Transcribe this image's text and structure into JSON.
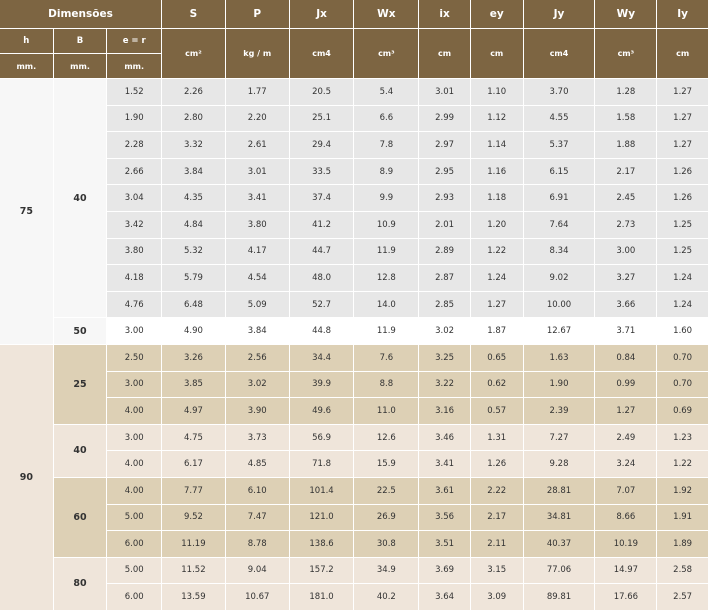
{
  "header": {
    "group_label": "Dimensões",
    "columns": [
      "S",
      "P",
      "Jx",
      "Wx",
      "ix",
      "ey",
      "Jy",
      "Wy",
      "Iy"
    ],
    "sub": {
      "h": "h",
      "b": "B",
      "er": "e = r"
    },
    "units_dims": {
      "h": "mm.",
      "b": "mm.",
      "er": "mm."
    },
    "units": [
      "cm²",
      "kg / m",
      "cm4",
      "cm³",
      "cm",
      "cm",
      "cm4",
      "cm³",
      "cm"
    ]
  },
  "h75": {
    "h": "75",
    "b40": {
      "b": "40",
      "rows": [
        [
          "1.52",
          "2.26",
          "1.77",
          "20.5",
          "5.4",
          "3.01",
          "1.10",
          "3.70",
          "1.28",
          "1.27"
        ],
        [
          "1.90",
          "2.80",
          "2.20",
          "25.1",
          "6.6",
          "2.99",
          "1.12",
          "4.55",
          "1.58",
          "1.27"
        ],
        [
          "2.28",
          "3.32",
          "2.61",
          "29.4",
          "7.8",
          "2.97",
          "1.14",
          "5.37",
          "1.88",
          "1.27"
        ],
        [
          "2.66",
          "3.84",
          "3.01",
          "33.5",
          "8.9",
          "2.95",
          "1.16",
          "6.15",
          "2.17",
          "1.26"
        ],
        [
          "3.04",
          "4.35",
          "3.41",
          "37.4",
          "9.9",
          "2.93",
          "1.18",
          "6.91",
          "2.45",
          "1.26"
        ],
        [
          "3.42",
          "4.84",
          "3.80",
          "41.2",
          "10.9",
          "2.01",
          "1.20",
          "7.64",
          "2.73",
          "1.25"
        ],
        [
          "3.80",
          "5.32",
          "4.17",
          "44.7",
          "11.9",
          "2.89",
          "1.22",
          "8.34",
          "3.00",
          "1.25"
        ],
        [
          "4.18",
          "5.79",
          "4.54",
          "48.0",
          "12.8",
          "2.87",
          "1.24",
          "9.02",
          "3.27",
          "1.24"
        ],
        [
          "4.76",
          "6.48",
          "5.09",
          "52.7",
          "14.0",
          "2.85",
          "1.27",
          "10.00",
          "3.66",
          "1.24"
        ]
      ]
    },
    "b50": {
      "b": "50",
      "rows": [
        [
          "3.00",
          "4.90",
          "3.84",
          "44.8",
          "11.9",
          "3.02",
          "1.87",
          "12.67",
          "3.71",
          "1.60"
        ]
      ]
    }
  },
  "h90": {
    "h": "90",
    "b25": {
      "b": "25",
      "rows": [
        [
          "2.50",
          "3.26",
          "2.56",
          "34.4",
          "7.6",
          "3.25",
          "0.65",
          "1.63",
          "0.84",
          "0.70"
        ],
        [
          "3.00",
          "3.85",
          "3.02",
          "39.9",
          "8.8",
          "3.22",
          "0.62",
          "1.90",
          "0.99",
          "0.70"
        ],
        [
          "4.00",
          "4.97",
          "3.90",
          "49.6",
          "11.0",
          "3.16",
          "0.57",
          "2.39",
          "1.27",
          "0.69"
        ]
      ]
    },
    "b40": {
      "b": "40",
      "rows": [
        [
          "3.00",
          "4.75",
          "3.73",
          "56.9",
          "12.6",
          "3.46",
          "1.31",
          "7.27",
          "2.49",
          "1.23"
        ],
        [
          "4.00",
          "6.17",
          "4.85",
          "71.8",
          "15.9",
          "3.41",
          "1.26",
          "9.28",
          "3.24",
          "1.22"
        ]
      ]
    },
    "b60": {
      "b": "60",
      "rows": [
        [
          "4.00",
          "7.77",
          "6.10",
          "101.4",
          "22.5",
          "3.61",
          "2.22",
          "28.81",
          "7.07",
          "1.92"
        ],
        [
          "5.00",
          "9.52",
          "7.47",
          "121.0",
          "26.9",
          "3.56",
          "2.17",
          "34.81",
          "8.66",
          "1.91"
        ],
        [
          "6.00",
          "11.19",
          "8.78",
          "138.6",
          "30.8",
          "3.51",
          "2.11",
          "40.37",
          "10.19",
          "1.89"
        ]
      ]
    },
    "b80": {
      "b": "80",
      "rows": [
        [
          "5.00",
          "11.52",
          "9.04",
          "157.2",
          "34.9",
          "3.69",
          "3.15",
          "77.06",
          "14.97",
          "2.58"
        ],
        [
          "6.00",
          "13.59",
          "10.67",
          "181.0",
          "40.2",
          "3.64",
          "3.09",
          "89.81",
          "17.66",
          "2.57"
        ]
      ]
    }
  }
}
